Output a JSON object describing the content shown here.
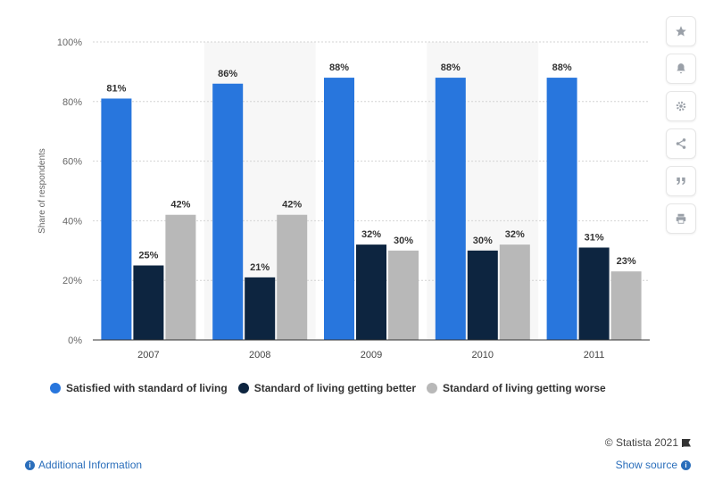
{
  "chart_data": {
    "type": "bar",
    "categories": [
      "2007",
      "2008",
      "2009",
      "2010",
      "2011"
    ],
    "series": [
      {
        "name": "Satisfied with standard of living",
        "color": "#2876dd",
        "values": [
          81,
          86,
          88,
          88,
          88
        ],
        "labels": [
          "81%",
          "86%",
          "88%",
          "88%",
          "88%"
        ]
      },
      {
        "name": "Standard of living getting better",
        "color": "#0d2540",
        "values": [
          25,
          21,
          32,
          30,
          31
        ],
        "labels": [
          "25%",
          "21%",
          "32%",
          "30%",
          "31%"
        ]
      },
      {
        "name": "Standard of living getting worse",
        "color": "#b8b8b8",
        "values": [
          42,
          42,
          30,
          32,
          23
        ],
        "labels": [
          "42%",
          "42%",
          "30%",
          "32%",
          "23%"
        ]
      }
    ],
    "ylabel": "Share of respondents",
    "ylim": [
      0,
      100
    ],
    "yticks": [
      "0%",
      "20%",
      "40%",
      "60%",
      "80%",
      "100%"
    ],
    "grid": true,
    "legend_position": "bottom"
  },
  "sidebar": {
    "buttons": [
      "star-icon",
      "bell-icon",
      "gear-icon",
      "share-icon",
      "quote-icon",
      "print-icon"
    ]
  },
  "footer": {
    "credit": "© Statista 2021",
    "additional_info": "Additional Information",
    "show_source": "Show source"
  }
}
